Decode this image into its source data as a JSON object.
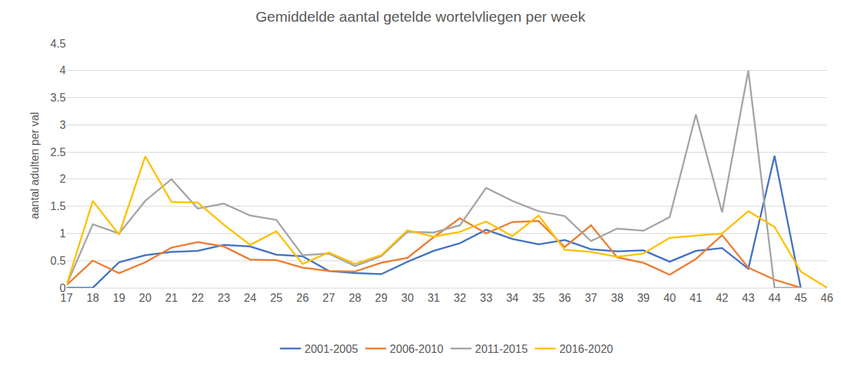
{
  "chart_data": {
    "type": "line",
    "title": "Gemiddelde aantal getelde wortelvliegen per week",
    "y_label": "aantal adulten per val",
    "categories": [
      17,
      18,
      19,
      20,
      21,
      22,
      23,
      24,
      25,
      26,
      27,
      28,
      29,
      30,
      31,
      32,
      33,
      34,
      35,
      36,
      37,
      38,
      39,
      40,
      41,
      42,
      43,
      44,
      45,
      46
    ],
    "series": [
      {
        "name": "2001-2005",
        "color": "#4472c4",
        "values": [
          0,
          0,
          0.47,
          0.6,
          0.66,
          0.68,
          0.79,
          0.76,
          0.61,
          0.58,
          0.31,
          0.27,
          0.25,
          0.48,
          0.68,
          0.82,
          1.07,
          0.9,
          0.8,
          0.88,
          0.71,
          0.67,
          0.69,
          0.48,
          0.68,
          0.73,
          0.35,
          2.43,
          0,
          null
        ]
      },
      {
        "name": "2006-2010",
        "color": "#ed7d31",
        "values": [
          0.05,
          0.5,
          0.27,
          0.47,
          0.74,
          0.84,
          0.76,
          0.52,
          0.51,
          0.37,
          0.31,
          0.3,
          0.46,
          0.55,
          0.93,
          1.28,
          1.0,
          1.21,
          1.23,
          0.75,
          1.15,
          0.56,
          0.46,
          0.24,
          0.53,
          0.97,
          0.37,
          0.15,
          0,
          null
        ]
      },
      {
        "name": "2011-2015",
        "color": "#a5a5a5",
        "values": [
          0.05,
          1.17,
          1.0,
          1.6,
          2.0,
          1.46,
          1.55,
          1.33,
          1.25,
          0.6,
          0.63,
          0.4,
          0.58,
          1.03,
          1.02,
          1.15,
          1.84,
          1.6,
          1.41,
          1.32,
          0.86,
          1.09,
          1.05,
          1.3,
          3.19,
          1.39,
          4.0,
          0,
          0,
          null
        ]
      },
      {
        "name": "2016-2020",
        "color": "#ffc000",
        "values": [
          0.05,
          1.6,
          0.98,
          2.42,
          1.58,
          1.57,
          1.16,
          0.79,
          1.04,
          0.44,
          0.65,
          0.44,
          0.6,
          1.06,
          0.94,
          1.03,
          1.22,
          0.95,
          1.33,
          0.7,
          0.66,
          0.57,
          0.63,
          0.92,
          0.96,
          1.0,
          1.41,
          1.12,
          0.3,
          0
        ]
      }
    ],
    "ylim": [
      0,
      4.5
    ],
    "yticks": [
      0,
      0.5,
      1,
      1.5,
      2,
      2.5,
      3,
      3.5,
      4,
      4.5
    ],
    "grid": true,
    "legend": "bottom"
  }
}
